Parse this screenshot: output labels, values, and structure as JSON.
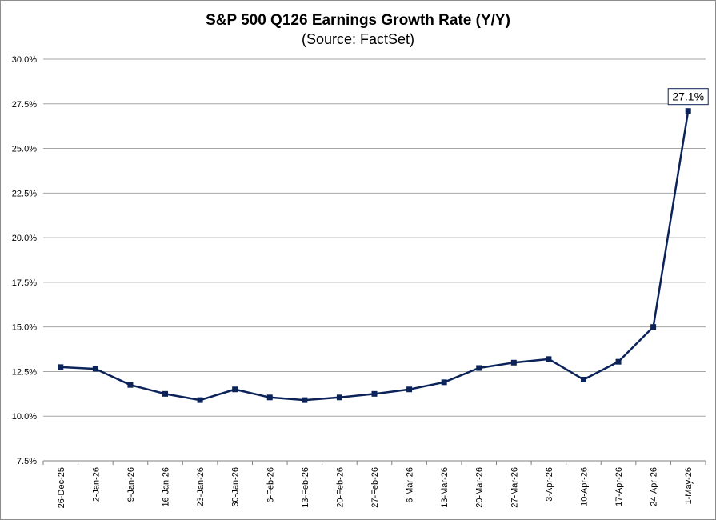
{
  "chart_data": {
    "type": "line",
    "title": "S&P 500 Q126 Earnings Growth Rate (Y/Y)",
    "subtitle": "(Source: FactSet)",
    "xlabel": "",
    "ylabel": "",
    "categories": [
      "26-Dec-25",
      "2-Jan-26",
      "9-Jan-26",
      "16-Jan-26",
      "23-Jan-26",
      "30-Jan-26",
      "6-Feb-26",
      "13-Feb-26",
      "20-Feb-26",
      "27-Feb-26",
      "6-Mar-26",
      "13-Mar-26",
      "20-Mar-26",
      "27-Mar-26",
      "3-Apr-26",
      "10-Apr-26",
      "17-Apr-26",
      "24-Apr-26",
      "1-May-26"
    ],
    "series": [
      {
        "values": [
          12.75,
          12.65,
          11.75,
          11.25,
          10.9,
          11.5,
          11.05,
          10.9,
          11.05,
          11.25,
          11.5,
          11.9,
          12.7,
          13.0,
          13.2,
          12.05,
          13.05,
          15.0,
          27.1
        ],
        "color": "#0b2359"
      }
    ],
    "ylim": [
      7.5,
      30.0
    ],
    "yticks": [
      "30.0%",
      "27.5%",
      "25.0%",
      "22.5%",
      "20.0%",
      "17.5%",
      "15.0%",
      "12.5%",
      "10.0%",
      "7.5%"
    ],
    "ytick_values": [
      30.0,
      27.5,
      25.0,
      22.5,
      20.0,
      17.5,
      15.0,
      12.5,
      10.0,
      7.5
    ],
    "grid": true,
    "annotation": {
      "text": "27.1%",
      "index": 18
    }
  }
}
